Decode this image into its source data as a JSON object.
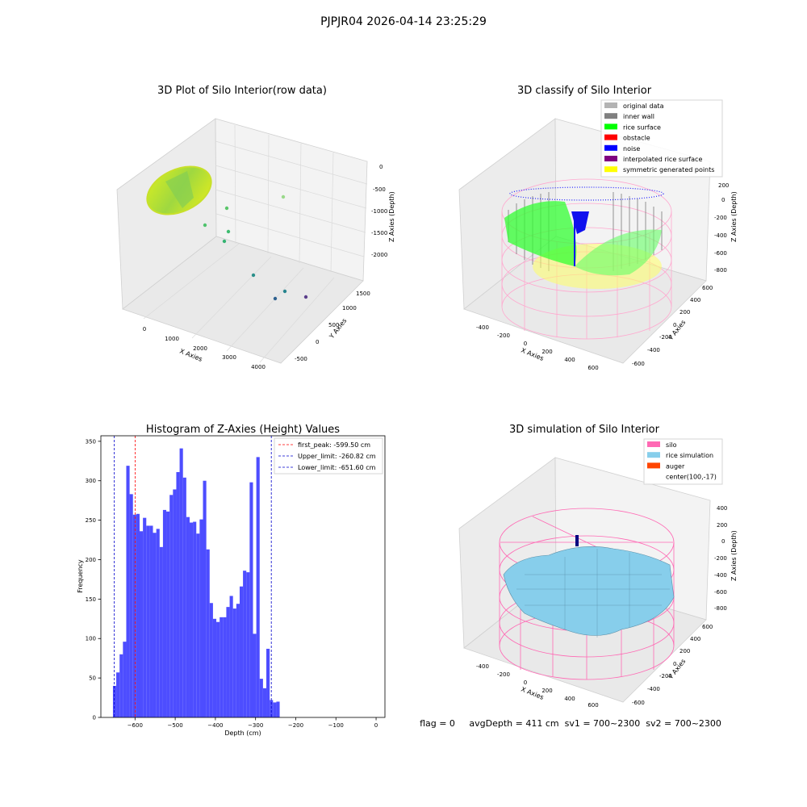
{
  "suptitle": "PJPJR04 2026-04-14 23:25:29",
  "status_line": "flag = 0     avgDepth = 411 cm  sv1 = 700~2300  sv2 = 700~2300",
  "panels": {
    "raw": {
      "title": "3D Plot of Silo Interior(row data)",
      "xlabel": "X Axies",
      "ylabel": "Y Axies",
      "zlabel": "Z Axies (Depth)",
      "xticks": [
        "0",
        "1000",
        "2000",
        "3000",
        "4000"
      ],
      "yticks": [
        "-500",
        "0",
        "500",
        "1000",
        "1500"
      ],
      "zticks": [
        "0",
        "-500",
        "-1000",
        "-1500",
        "-2000"
      ]
    },
    "classify": {
      "title": "3D classify of Silo Interior",
      "xlabel": "X Axies",
      "ylabel": "Y Axies",
      "zlabel": "Z Axies (Depth)",
      "xticks": [
        "-400",
        "-200",
        "0",
        "200",
        "400",
        "600"
      ],
      "yticks": [
        "-600",
        "-400",
        "-200",
        "0",
        "200",
        "400",
        "600"
      ],
      "zticks": [
        "200",
        "0",
        "-200",
        "-400",
        "-600",
        "-800"
      ],
      "legend": [
        {
          "label": "original data",
          "color": "#b3b3b3"
        },
        {
          "label": "inner wall",
          "color": "#808080"
        },
        {
          "label": "rice surface",
          "color": "#00ff00"
        },
        {
          "label": "obstacle",
          "color": "#ff0000"
        },
        {
          "label": "noise",
          "color": "#0000ff"
        },
        {
          "label": "interpolated rice surface",
          "color": "#800080"
        },
        {
          "label": "symmetric generated points",
          "color": "#ffff00"
        }
      ]
    },
    "simulation": {
      "title": "3D simulation of Silo Interior",
      "xlabel": "X Axies",
      "ylabel": "Y Axies",
      "zlabel": "Z Axies (Depth)",
      "xticks": [
        "-400",
        "-200",
        "0",
        "200",
        "400",
        "600"
      ],
      "yticks": [
        "-600",
        "-400",
        "-200",
        "0",
        "200",
        "400",
        "600"
      ],
      "zticks": [
        "400",
        "200",
        "0",
        "-200",
        "-400",
        "-600",
        "-800"
      ],
      "legend": [
        {
          "label": "silo",
          "color": "#ff69b4"
        },
        {
          "label": "rice simulation",
          "color": "#87ceeb"
        },
        {
          "label": "auger",
          "color": "#ff4500"
        },
        {
          "label": "center(100,-17)",
          "color": ""
        }
      ]
    }
  },
  "chart_data": {
    "type": "bar",
    "title": "Histogram of Z-Axies (Height) Values",
    "xlabel": "Depth (cm)",
    "ylabel": "Frequency",
    "xlim": [
      -685,
      22
    ],
    "ylim": [
      0,
      357
    ],
    "xticks": [
      -600,
      -500,
      -400,
      -300,
      -200,
      -100,
      0
    ],
    "yticks": [
      0,
      50,
      100,
      150,
      200,
      250,
      300,
      350
    ],
    "bin_start": -655,
    "bin_width": 8.3,
    "values": [
      40,
      57,
      80,
      96,
      319,
      283,
      257,
      258,
      236,
      253,
      243,
      243,
      234,
      239,
      216,
      263,
      261,
      282,
      289,
      311,
      341,
      304,
      254,
      247,
      248,
      233,
      251,
      300,
      213,
      145,
      125,
      121,
      127,
      127,
      140,
      154,
      138,
      144,
      166,
      186,
      184,
      298,
      106,
      330,
      49,
      37,
      87,
      22,
      19,
      20
    ],
    "lines": [
      {
        "label": "first_peak: -599.50 cm",
        "value": -599.5,
        "color": "#ff0000"
      },
      {
        "label": "Upper_limit: -260.82 cm",
        "value": -260.82,
        "color": "#0000cc"
      },
      {
        "label": "Lower_limit: -651.60 cm",
        "value": -651.6,
        "color": "#0000cc"
      }
    ],
    "bar_color": "#4d4dff",
    "grid": false,
    "legend_position": "top-right"
  }
}
